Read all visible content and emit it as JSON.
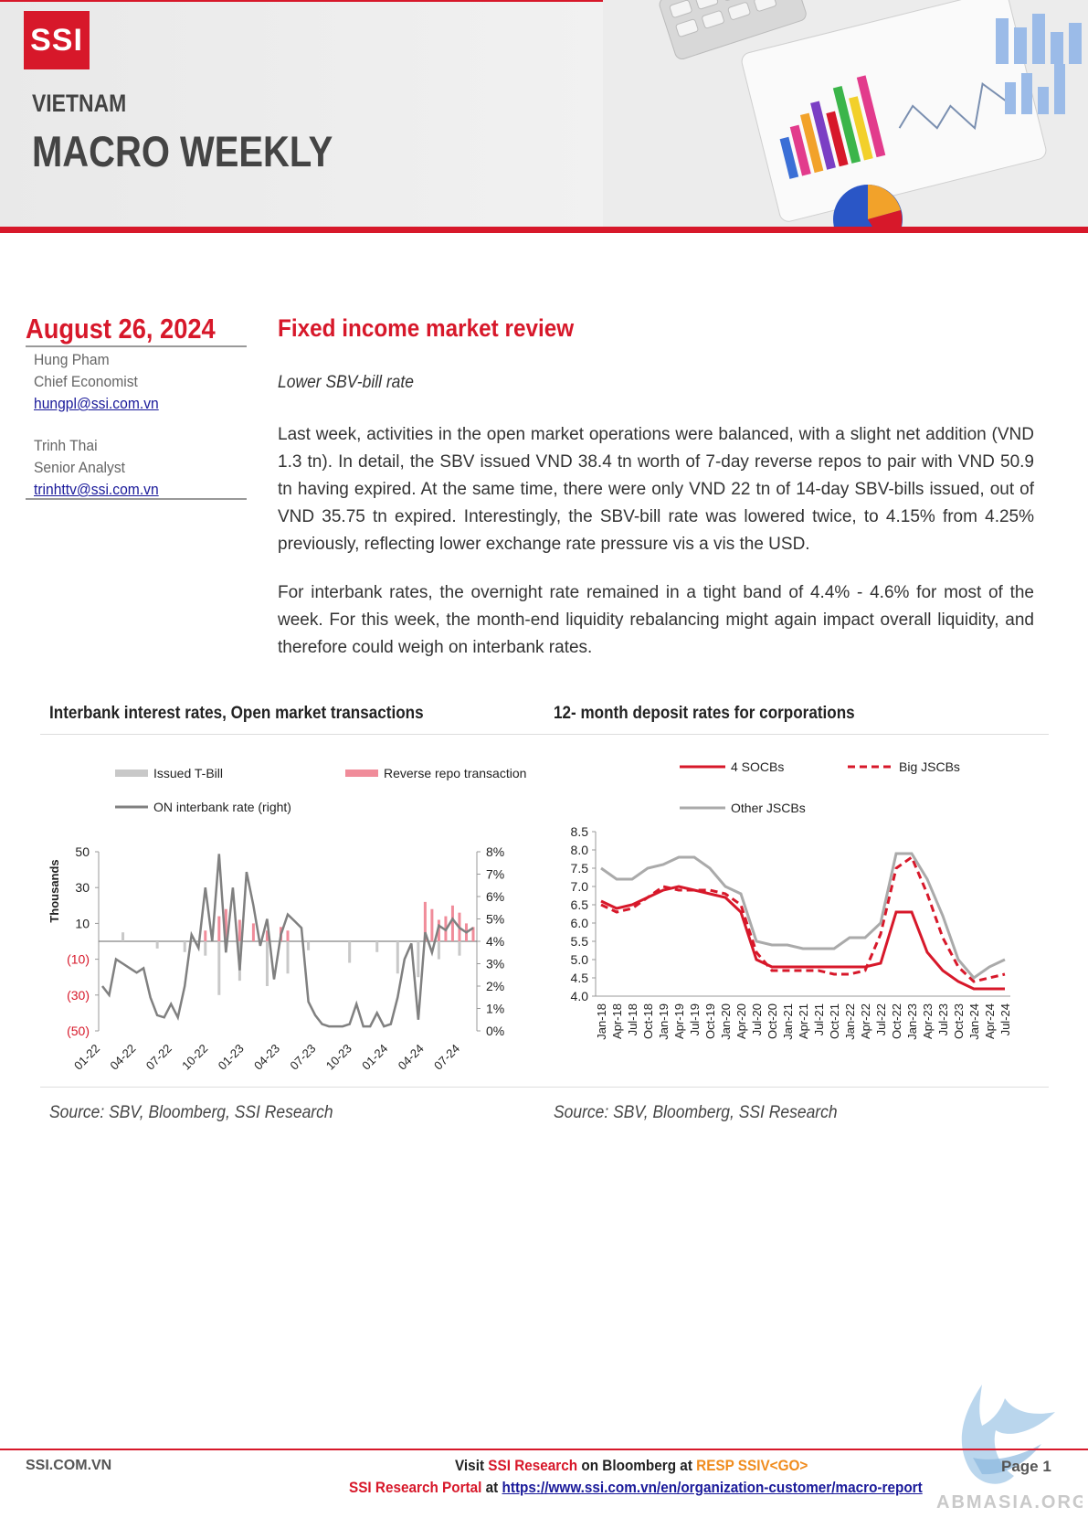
{
  "header": {
    "logo": "SSI",
    "country": "VIETNAM",
    "report_title": "MACRO WEEKLY"
  },
  "left": {
    "date": "August 26, 2024",
    "authors": [
      {
        "name": "Hung Pham",
        "role": "Chief Economist",
        "email": "hungpl@ssi.com.vn"
      },
      {
        "name": "Trinh Thai",
        "role": "Senior Analyst",
        "email": "trinhttv@ssi.com.vn"
      }
    ]
  },
  "main": {
    "section_title": "Fixed income market review",
    "subtitle": "Lower SBV-bill rate",
    "paragraphs": [
      "Last week, activities in the open market operations were balanced, with a slight net addition (VND 1.3 tn). In detail, the SBV issued VND 38.4 tn worth of 7-day reverse repos to pair with VND 50.9 tn having expired. At the same time, there were only VND 22 tn of 14-day SBV-bills issued, out of VND 35.75 tn expired. Interestingly, the SBV-bill rate was lowered twice, to 4.15% from 4.25% previously, reflecting lower exchange rate pressure vis a vis the USD.",
      "For interbank rates, the overnight rate remained in a tight band of 4.4% - 4.6% for most of the week. For this week, the month-end liquidity rebalancing might again impact overall liquidity, and therefore could weigh on interbank rates."
    ]
  },
  "chart_data": [
    {
      "type": "bar",
      "title": "Interbank interest rates, Open market transactions",
      "source": "Source: SBV, Bloomberg, SSI Research",
      "ylabel": "Thousands",
      "y_ticks": [
        "50",
        "30",
        "10",
        "(10)",
        "(30)",
        "(50)"
      ],
      "y2_ticks": [
        "8%",
        "7%",
        "6%",
        "5%",
        "4%",
        "3%",
        "2%",
        "1%",
        "0%"
      ],
      "ylim": [
        -50,
        50
      ],
      "y2lim": [
        0,
        8
      ],
      "x_ticks": [
        "01-22",
        "04-22",
        "07-22",
        "10-22",
        "01-23",
        "04-23",
        "07-23",
        "10-23",
        "01-24",
        "04-24",
        "07-24"
      ],
      "legend": [
        "Issued T-Bill",
        "Reverse repo transaction",
        "ON interbank rate (right)"
      ],
      "colors": {
        "tbill": "#c8c8c8",
        "repo": "#f08c9a",
        "on_rate": "#808080"
      },
      "on_rate_series": [
        [
          0,
          2.0
        ],
        [
          1,
          1.6
        ],
        [
          2,
          3.2
        ],
        [
          3,
          3.0
        ],
        [
          4,
          2.8
        ],
        [
          5,
          2.6
        ],
        [
          6,
          2.8
        ],
        [
          7,
          1.5
        ],
        [
          8,
          0.7
        ],
        [
          9,
          0.6
        ],
        [
          10,
          1.2
        ],
        [
          11,
          0.6
        ],
        [
          12,
          2.0
        ],
        [
          13,
          4.3
        ],
        [
          14,
          3.7
        ],
        [
          15,
          6.4
        ],
        [
          16,
          4.0
        ],
        [
          17,
          7.9
        ],
        [
          18,
          3.5
        ],
        [
          19,
          6.4
        ],
        [
          20,
          2.7
        ],
        [
          21,
          7.1
        ],
        [
          22,
          5.6
        ],
        [
          23,
          3.8
        ],
        [
          24,
          5.0
        ],
        [
          25,
          2.3
        ],
        [
          26,
          4.3
        ],
        [
          27,
          5.2
        ],
        [
          28,
          4.9
        ],
        [
          29,
          4.6
        ],
        [
          30,
          1.3
        ],
        [
          31,
          0.7
        ],
        [
          32,
          0.3
        ],
        [
          33,
          0.2
        ],
        [
          34,
          0.2
        ],
        [
          35,
          0.2
        ],
        [
          36,
          0.3
        ],
        [
          37,
          1.2
        ],
        [
          38,
          0.2
        ],
        [
          39,
          0.2
        ],
        [
          40,
          0.8
        ],
        [
          41,
          0.2
        ],
        [
          42,
          0.3
        ],
        [
          43,
          1.5
        ],
        [
          44,
          3.2
        ],
        [
          45,
          3.9
        ],
        [
          46,
          0.5
        ],
        [
          47,
          4.4
        ],
        [
          48,
          3.5
        ],
        [
          49,
          4.7
        ],
        [
          50,
          4.5
        ],
        [
          51,
          5.0
        ],
        [
          52,
          4.6
        ],
        [
          53,
          4.4
        ],
        [
          54,
          4.6
        ]
      ],
      "tbill_bars": [
        [
          3,
          5
        ],
        [
          8,
          -4
        ],
        [
          12,
          -6
        ],
        [
          15,
          -8
        ],
        [
          17,
          -30
        ],
        [
          20,
          -22
        ],
        [
          24,
          -25
        ],
        [
          27,
          -18
        ],
        [
          30,
          -5
        ],
        [
          36,
          -12
        ],
        [
          40,
          -6
        ],
        [
          43,
          -18
        ],
        [
          46,
          -20
        ],
        [
          49,
          -10
        ],
        [
          52,
          -8
        ]
      ],
      "repo_bars": [
        [
          15,
          6
        ],
        [
          17,
          14
        ],
        [
          18,
          18
        ],
        [
          20,
          12
        ],
        [
          22,
          10
        ],
        [
          24,
          6
        ],
        [
          26,
          8
        ],
        [
          27,
          6
        ],
        [
          47,
          22
        ],
        [
          48,
          18
        ],
        [
          49,
          12
        ],
        [
          50,
          14
        ],
        [
          51,
          20
        ],
        [
          52,
          16
        ],
        [
          53,
          10
        ],
        [
          54,
          8
        ]
      ]
    },
    {
      "type": "line",
      "title": "12- month deposit rates for corporations",
      "source": "Source: SBV, Bloomberg, SSI Research",
      "y_ticks": [
        "8.5",
        "8.0",
        "7.5",
        "7.0",
        "6.5",
        "6.0",
        "5.5",
        "5.0",
        "4.5",
        "4.0"
      ],
      "ylim": [
        4.0,
        8.5
      ],
      "x_ticks": [
        "Jan-18",
        "Apr-18",
        "Jul-18",
        "Oct-18",
        "Jan-19",
        "Apr-19",
        "Jul-19",
        "Oct-19",
        "Jan-20",
        "Apr-20",
        "Jul-20",
        "Oct-20",
        "Jan-21",
        "Apr-21",
        "Jul-21",
        "Oct-21",
        "Jan-22",
        "Apr-22",
        "Jul-22",
        "Oct-22",
        "Jan-23",
        "Apr-23",
        "Jul-23",
        "Oct-23",
        "Jan-24",
        "Apr-24",
        "Jul-24"
      ],
      "series": [
        {
          "name": "4 SOCBs",
          "color": "#d7182a",
          "dash": false,
          "values": [
            6.6,
            6.4,
            6.5,
            6.7,
            6.9,
            7.0,
            6.9,
            6.8,
            6.7,
            6.3,
            5.0,
            4.8,
            4.8,
            4.8,
            4.8,
            4.8,
            4.8,
            4.8,
            4.9,
            6.3,
            6.3,
            5.2,
            4.7,
            4.4,
            4.2,
            4.2,
            4.2
          ]
        },
        {
          "name": "Big JSCBs",
          "color": "#d7182a",
          "dash": true,
          "values": [
            6.5,
            6.3,
            6.4,
            6.7,
            7.0,
            6.9,
            6.9,
            6.9,
            6.8,
            6.5,
            5.2,
            4.7,
            4.7,
            4.7,
            4.7,
            4.6,
            4.6,
            4.7,
            5.7,
            7.5,
            7.8,
            6.8,
            5.6,
            4.8,
            4.4,
            4.5,
            4.6
          ]
        },
        {
          "name": "Other JSCBs",
          "color": "#aaaaaa",
          "dash": false,
          "values": [
            7.5,
            7.2,
            7.2,
            7.5,
            7.6,
            7.8,
            7.8,
            7.5,
            7.0,
            6.8,
            5.5,
            5.4,
            5.4,
            5.3,
            5.3,
            5.3,
            5.6,
            5.6,
            6.0,
            7.9,
            7.9,
            7.2,
            6.2,
            5.0,
            4.5,
            4.8,
            5.0
          ]
        }
      ]
    }
  ],
  "footer": {
    "site": "SSI.COM.VN",
    "visit_1": "Visit ",
    "visit_2": "SSI Research",
    "visit_3": " on Bloomberg at ",
    "visit_4": "RESP SSIV<GO>",
    "portal_1": "SSI Research Portal",
    "portal_2": " at ",
    "portal_url": "https://www.ssi.com.vn/en/organization-customer/macro-report",
    "page": "Page  1",
    "watermark": "ABMASIA.ORG"
  }
}
